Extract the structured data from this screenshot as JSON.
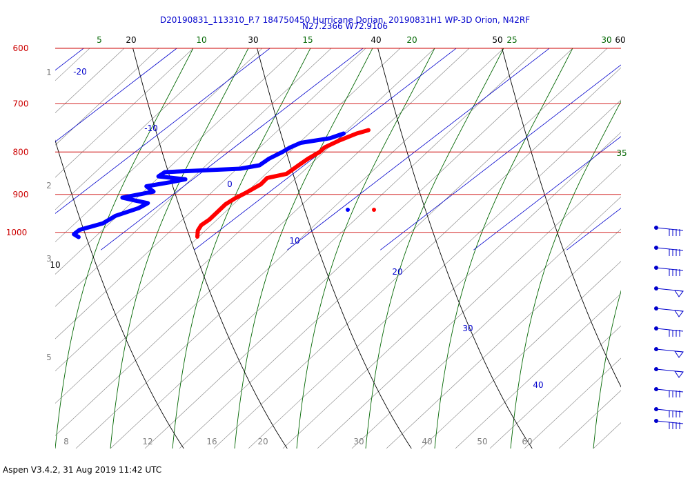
{
  "chart_data": {
    "type": "skew-t",
    "title": "D20190831_113310_P.7 184750450 Hurricane Dorian, 20190831H1 WP-3D Orion, N42RF",
    "subtitle": "N27.2366 W72.9106",
    "footer": "Aspen V3.4.2, 31 Aug 2019  11:42 UTC",
    "pressure_levels": [
      600,
      700,
      800,
      900,
      1000
    ],
    "pressure_labels": [
      "600",
      "700",
      "800",
      "900",
      "1000"
    ],
    "height_km_labels": [
      "1",
      "2",
      "3",
      "5"
    ],
    "temperature_axis_labels": [
      "8",
      "12",
      "16",
      "20",
      "30",
      "40",
      "50",
      "60"
    ],
    "isotherm_labels": [
      "-20",
      "-10",
      "0",
      "10",
      "20",
      "30",
      "40"
    ],
    "dry_adiabat_labels": [
      "20",
      "30",
      "40",
      "50",
      "60",
      "10"
    ],
    "moist_adiabat_labels": [
      "5",
      "10",
      "15",
      "20",
      "25",
      "30",
      "35"
    ],
    "colors": {
      "temperature": "#ff0000",
      "dewpoint": "#0000ff",
      "pressure_lines": "#cc0000",
      "isotherms": "#0000cc",
      "dry_adiabats": "#000000",
      "moist_adiabats": "#006600",
      "mixing_ratio": "#808080",
      "wind_barbs": "#0000cc"
    },
    "series": [
      {
        "name": "Temperature",
        "points": [
          [
            753,
            22.0
          ],
          [
            760,
            21.2
          ],
          [
            775,
            20.3
          ],
          [
            790,
            19.7
          ],
          [
            800,
            19.8
          ],
          [
            815,
            19.5
          ],
          [
            830,
            19.4
          ],
          [
            850,
            19.3
          ],
          [
            860,
            17.8
          ],
          [
            875,
            18.0
          ],
          [
            895,
            17.6
          ],
          [
            910,
            17.2
          ],
          [
            925,
            17.0
          ],
          [
            945,
            17.2
          ],
          [
            965,
            17.4
          ],
          [
            980,
            17.3
          ],
          [
            995,
            17.7
          ],
          [
            1012,
            18.5
          ]
        ]
      },
      {
        "name": "Dewpoint",
        "points": [
          [
            760,
            19.8
          ],
          [
            770,
            19.0
          ],
          [
            780,
            16.5
          ],
          [
            790,
            16.0
          ],
          [
            800,
            15.8
          ],
          [
            815,
            15.3
          ],
          [
            830,
            15.2
          ],
          [
            838,
            13.6
          ],
          [
            846,
            6.0
          ],
          [
            856,
            5.9
          ],
          [
            863,
            9.2
          ],
          [
            870,
            8.0
          ],
          [
            880,
            6.0
          ],
          [
            893,
            7.5
          ],
          [
            908,
            5.0
          ],
          [
            915,
            6.7
          ],
          [
            922,
            8.5
          ],
          [
            935,
            8.2
          ],
          [
            955,
            6.8
          ],
          [
            975,
            6.5
          ],
          [
            993,
            4.9
          ],
          [
            1005,
            4.9
          ],
          [
            1013,
            5.8
          ]
        ]
      }
    ],
    "wind_barbs_count": 11
  }
}
